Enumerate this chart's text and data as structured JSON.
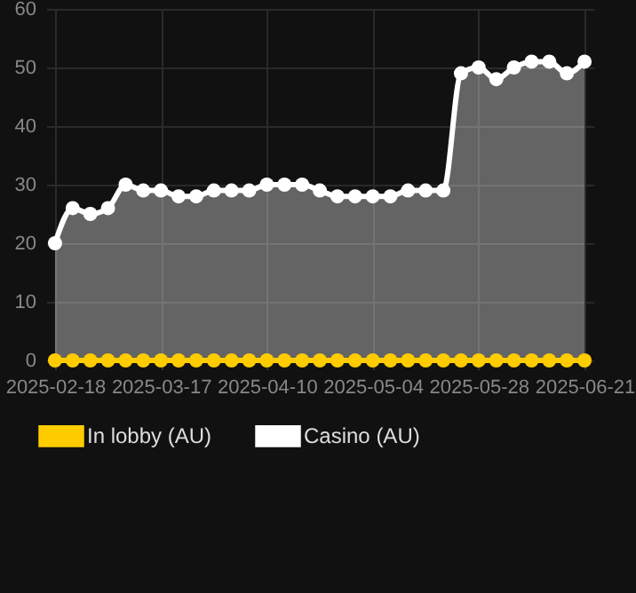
{
  "chart_data": {
    "type": "area",
    "categories": [
      "2025-02-18",
      null,
      null,
      null,
      null,
      null,
      "2025-03-17",
      null,
      null,
      null,
      null,
      null,
      "2025-04-10",
      null,
      null,
      null,
      null,
      null,
      "2025-05-04",
      null,
      null,
      null,
      null,
      null,
      "2025-05-28",
      null,
      null,
      null,
      null,
      null,
      "2025-06-21"
    ],
    "series": [
      {
        "name": "In lobby (AU)",
        "color": "#ffcc00",
        "type": "line",
        "values": [
          0,
          0,
          0,
          0,
          0,
          0,
          0,
          0,
          0,
          0,
          0,
          0,
          0,
          0,
          0,
          0,
          0,
          0,
          0,
          0,
          0,
          0,
          0,
          0,
          0,
          0,
          0,
          0,
          0,
          0,
          0
        ]
      },
      {
        "name": "Casino (AU)",
        "color": "#ffffff",
        "values": [
          20,
          26,
          25,
          26,
          30,
          29,
          29,
          28,
          28,
          29,
          29,
          29,
          30,
          30,
          30,
          29,
          28,
          28,
          28,
          28,
          29,
          29,
          29,
          49,
          50,
          48,
          50,
          51,
          51,
          49,
          51
        ]
      }
    ],
    "ylim": [
      0,
      60
    ],
    "yticks": [
      0,
      10,
      20,
      30,
      40,
      50,
      60
    ],
    "grid": true,
    "legend": "bottom",
    "marker": "circle"
  }
}
